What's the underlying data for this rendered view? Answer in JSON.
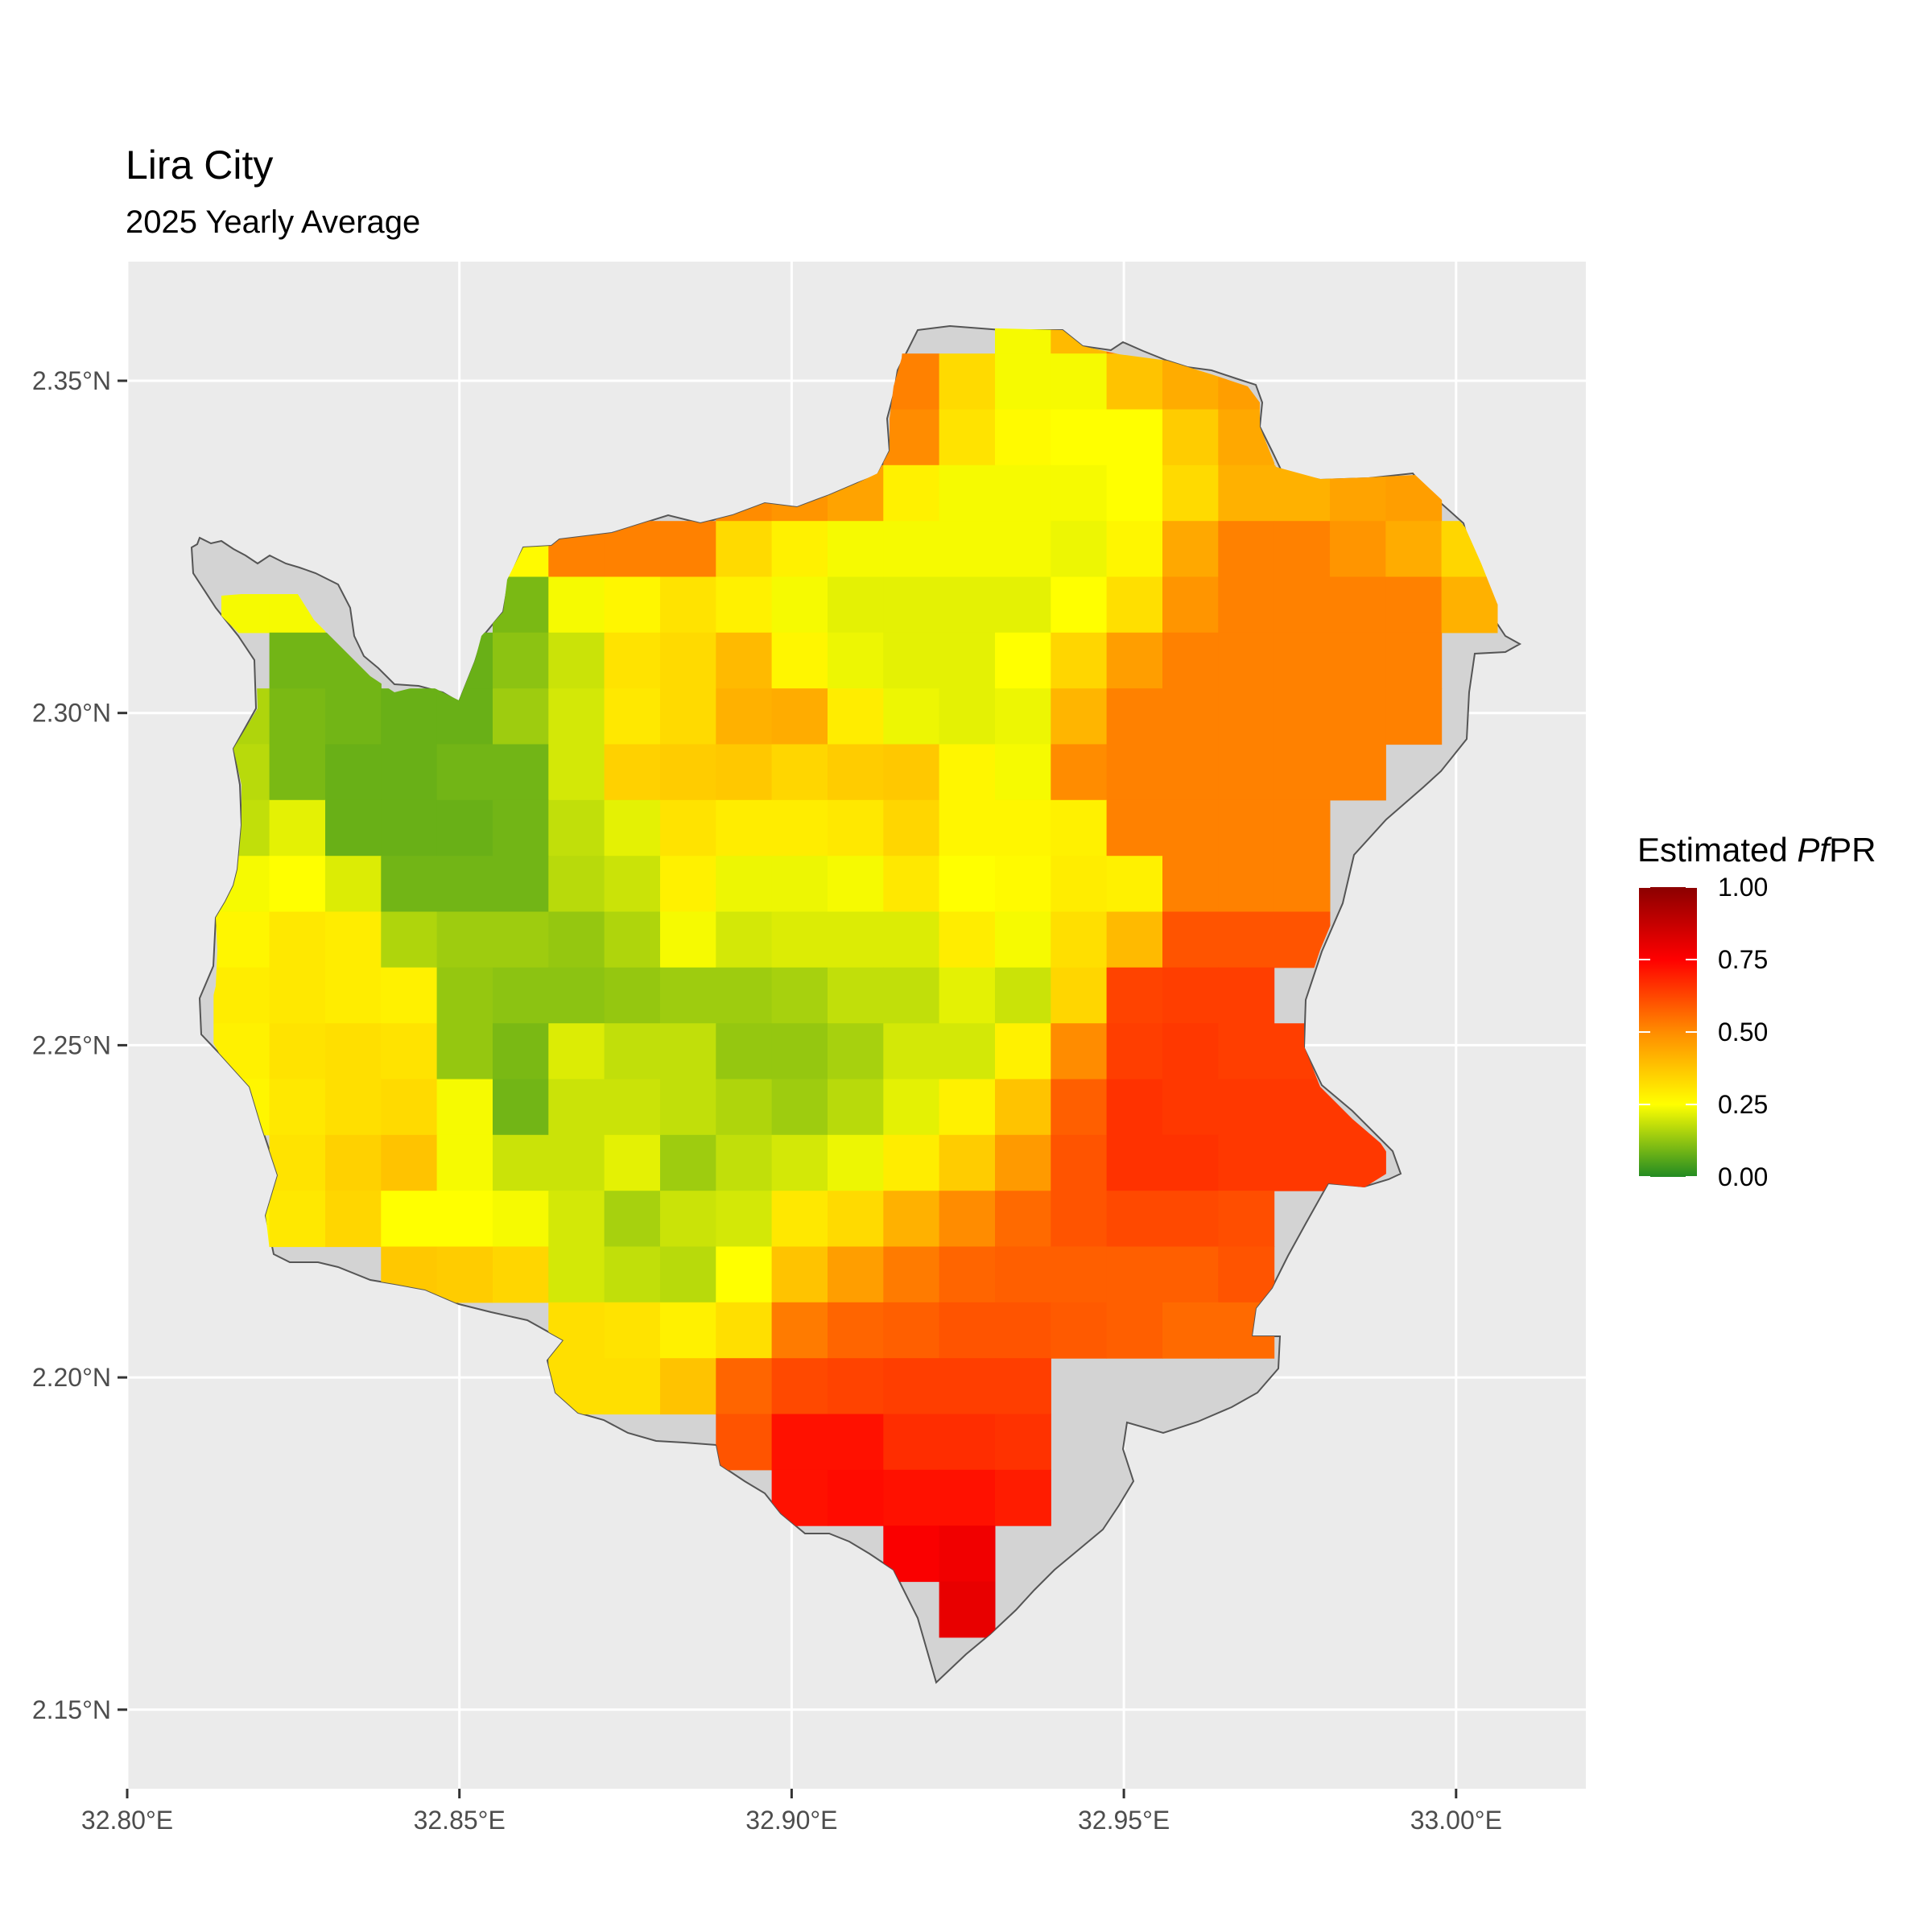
{
  "title": "Lira City",
  "subtitle": "2025 Yearly Average",
  "legend": {
    "title_prefix": "Estimated ",
    "title_italic": "Pf",
    "title_suffix": "PR",
    "ticks": [
      "1.00",
      "0.75",
      "0.50",
      "0.25",
      "0.00"
    ]
  },
  "axes": {
    "x_ticks": [
      "32.80°E",
      "32.85°E",
      "32.90°E",
      "32.95°E",
      "33.00°E"
    ],
    "y_ticks": [
      "2.35°N",
      "2.30°N",
      "2.25°N",
      "2.20°N",
      "2.15°N"
    ]
  },
  "colors": {
    "panel_background": "#ebebeb",
    "grid": "#ffffff",
    "outside_region": "#d3d3d3",
    "palette": [
      "#228b22",
      "#ffff00",
      "#ff8c00",
      "#ff0000",
      "#8b0000"
    ]
  },
  "chart_data": {
    "type": "heatmap",
    "title": "Lira City",
    "subtitle": "2025 Yearly Average",
    "xlabel": "",
    "ylabel": "",
    "xlim": [
      32.8,
      33.02
    ],
    "ylim": [
      2.145,
      2.37
    ],
    "x_ticks": [
      32.8,
      32.85,
      32.9,
      32.95,
      33.0
    ],
    "y_ticks": [
      2.35,
      2.3,
      2.25,
      2.2,
      2.15
    ],
    "color_scale": {
      "min": 0.0,
      "max": 1.0,
      "ticks": [
        1.0,
        0.75,
        0.5,
        0.25,
        0.0
      ]
    },
    "grid_x0": 32.813,
    "grid_y_top": 2.3625,
    "cell_size": 0.0084,
    "rows": [
      [
        null,
        null,
        null,
        null,
        null,
        null,
        null,
        null,
        null,
        null,
        null,
        null,
        null,
        null,
        0.24,
        0.4,
        0.55,
        null,
        null,
        null,
        null,
        null,
        null
      ],
      [
        null,
        null,
        null,
        null,
        null,
        null,
        null,
        null,
        null,
        null,
        null,
        null,
        0.52,
        0.33,
        0.24,
        0.24,
        0.38,
        0.43,
        0.46,
        null,
        null,
        null,
        null
      ],
      [
        null,
        null,
        null,
        null,
        null,
        null,
        null,
        null,
        null,
        null,
        null,
        null,
        0.5,
        0.31,
        0.26,
        0.25,
        0.25,
        0.36,
        0.44,
        null,
        null,
        null,
        null
      ],
      [
        null,
        null,
        null,
        null,
        null,
        null,
        null,
        null,
        null,
        0.5,
        0.48,
        0.45,
        0.28,
        0.24,
        0.24,
        0.24,
        0.25,
        0.33,
        0.42,
        0.42,
        0.45,
        0.46,
        null
      ],
      [
        null,
        null,
        null,
        null,
        null,
        0.26,
        0.52,
        0.52,
        0.52,
        0.33,
        0.28,
        0.24,
        0.24,
        0.24,
        0.24,
        0.23,
        0.27,
        0.44,
        0.52,
        0.52,
        0.48,
        0.43,
        0.34
      ],
      [
        0.24,
        0.24,
        null,
        null,
        null,
        0.1,
        0.24,
        0.27,
        0.31,
        0.28,
        0.24,
        0.22,
        0.22,
        0.22,
        0.22,
        0.25,
        0.32,
        0.48,
        0.52,
        0.52,
        0.52,
        0.52,
        0.42
      ],
      [
        null,
        0.09,
        0.09,
        null,
        0.08,
        0.12,
        0.19,
        0.31,
        0.33,
        0.4,
        0.27,
        0.23,
        0.22,
        0.22,
        0.25,
        0.34,
        0.46,
        0.52,
        0.52,
        0.52,
        0.52,
        0.52,
        null
      ],
      [
        0.16,
        0.1,
        0.09,
        0.08,
        0.08,
        0.14,
        0.2,
        0.3,
        0.33,
        0.42,
        0.43,
        0.29,
        0.23,
        0.22,
        0.23,
        0.41,
        0.52,
        0.52,
        0.52,
        0.52,
        0.52,
        0.52,
        null
      ],
      [
        0.17,
        0.1,
        0.08,
        0.08,
        0.09,
        0.09,
        0.2,
        0.35,
        0.36,
        0.37,
        0.34,
        0.36,
        0.37,
        0.27,
        0.24,
        0.5,
        0.52,
        0.52,
        0.52,
        0.52,
        0.52,
        null,
        null
      ],
      [
        0.18,
        0.22,
        0.08,
        0.08,
        0.08,
        0.09,
        0.18,
        0.22,
        0.31,
        0.29,
        0.29,
        0.3,
        0.34,
        0.27,
        0.27,
        0.28,
        0.52,
        0.52,
        0.52,
        0.52,
        null,
        null,
        null
      ],
      [
        0.24,
        0.25,
        0.21,
        0.09,
        0.09,
        0.09,
        0.17,
        0.19,
        0.28,
        0.23,
        0.23,
        0.24,
        0.3,
        0.25,
        0.26,
        0.29,
        0.28,
        0.52,
        0.52,
        0.52,
        null,
        null,
        null
      ],
      [
        0.27,
        0.3,
        0.29,
        0.16,
        0.14,
        0.14,
        0.13,
        0.16,
        0.24,
        0.2,
        0.21,
        0.21,
        0.21,
        0.29,
        0.24,
        0.32,
        0.4,
        0.6,
        0.6,
        0.6,
        null,
        null,
        null
      ],
      [
        0.29,
        0.3,
        0.29,
        0.28,
        0.13,
        0.12,
        0.12,
        0.13,
        0.14,
        0.14,
        0.15,
        0.18,
        0.18,
        0.22,
        0.19,
        0.34,
        0.63,
        0.64,
        0.64,
        null,
        null,
        null,
        null
      ],
      [
        0.28,
        0.31,
        0.32,
        0.31,
        0.13,
        0.1,
        0.21,
        0.18,
        0.18,
        0.13,
        0.13,
        0.15,
        0.2,
        0.2,
        0.28,
        0.5,
        0.64,
        0.65,
        0.64,
        0.64,
        null,
        null,
        null
      ],
      [
        0.27,
        0.3,
        0.32,
        0.33,
        0.24,
        0.09,
        0.19,
        0.19,
        0.18,
        0.16,
        0.14,
        0.17,
        0.22,
        0.28,
        0.38,
        0.58,
        0.66,
        0.65,
        0.65,
        0.65,
        0.65,
        null,
        null
      ],
      [
        null,
        0.31,
        0.35,
        0.38,
        0.24,
        0.19,
        0.19,
        0.22,
        0.14,
        0.18,
        0.2,
        0.23,
        0.29,
        0.36,
        0.47,
        0.6,
        0.66,
        0.66,
        0.65,
        0.65,
        0.65,
        null,
        null
      ],
      [
        0.27,
        0.3,
        0.34,
        0.25,
        0.25,
        0.24,
        0.2,
        0.15,
        0.19,
        0.2,
        0.3,
        0.33,
        0.42,
        0.5,
        0.56,
        0.6,
        0.62,
        0.62,
        0.61,
        null,
        null,
        null,
        null
      ],
      [
        null,
        null,
        null,
        0.37,
        0.36,
        0.34,
        0.2,
        0.18,
        0.17,
        0.25,
        0.38,
        0.46,
        0.53,
        0.57,
        0.58,
        0.58,
        0.58,
        0.58,
        0.6,
        null,
        null,
        null,
        null
      ],
      [
        null,
        null,
        null,
        null,
        null,
        null,
        0.32,
        0.31,
        0.28,
        0.32,
        0.53,
        0.57,
        0.58,
        0.6,
        0.6,
        0.59,
        0.58,
        0.56,
        0.56,
        null,
        null,
        null,
        null
      ],
      [
        null,
        null,
        null,
        null,
        null,
        null,
        0.32,
        0.32,
        0.38,
        0.57,
        0.62,
        0.63,
        0.64,
        0.64,
        0.64,
        null,
        null,
        null,
        null,
        null,
        null,
        null,
        null
      ],
      [
        null,
        null,
        null,
        null,
        null,
        null,
        null,
        null,
        null,
        0.6,
        0.72,
        0.72,
        0.67,
        0.67,
        0.66,
        null,
        null,
        null,
        null,
        null,
        null,
        null,
        null
      ],
      [
        null,
        null,
        null,
        null,
        null,
        null,
        null,
        null,
        null,
        null,
        0.72,
        0.73,
        0.72,
        0.72,
        0.7,
        null,
        null,
        null,
        null,
        null,
        null,
        null,
        null
      ],
      [
        null,
        null,
        null,
        null,
        null,
        null,
        null,
        null,
        null,
        null,
        null,
        null,
        0.76,
        0.78,
        null,
        null,
        null,
        null,
        null,
        null,
        null,
        null,
        null
      ],
      [
        null,
        null,
        null,
        null,
        null,
        null,
        null,
        null,
        null,
        null,
        null,
        null,
        null,
        0.8,
        null,
        null,
        null,
        null,
        null,
        null,
        null,
        null,
        null
      ]
    ]
  }
}
